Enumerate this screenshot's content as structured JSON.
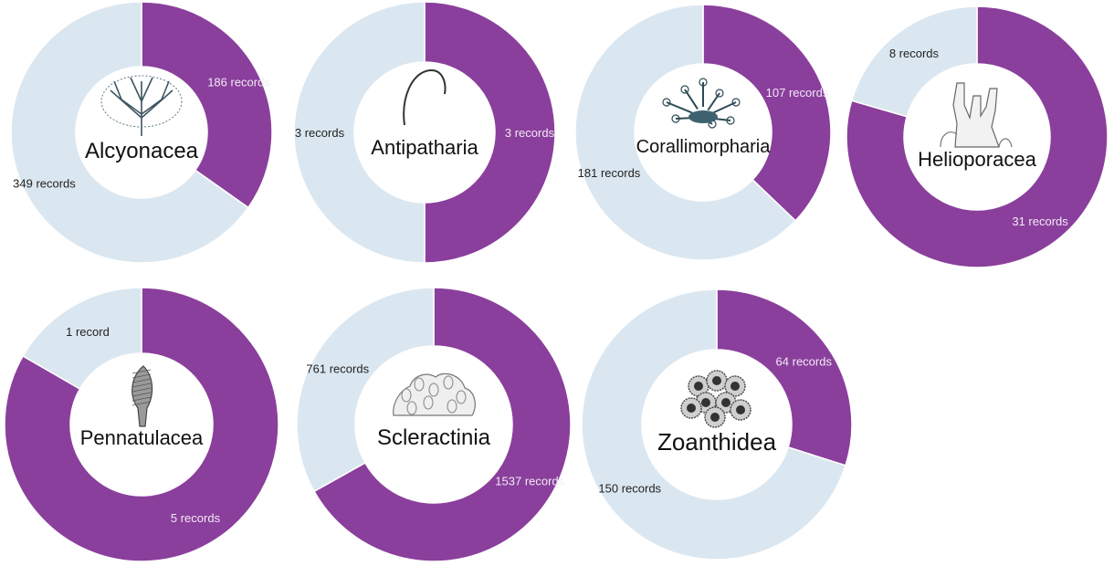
{
  "colors": {
    "recorded": "#8a3f9c",
    "other": "#dbe7f0",
    "label_on_recorded": "#f2eaf5",
    "label_on_other": "#222222"
  },
  "chart_data": [
    {
      "type": "pie",
      "title": "Alcyonacea",
      "icon": "sea-fan-icon",
      "slices": [
        {
          "label": "186 records",
          "value": 186,
          "color_key": "recorded"
        },
        {
          "label": "349 records",
          "value": 349,
          "color_key": "other"
        }
      ]
    },
    {
      "type": "pie",
      "title": "Antipatharia",
      "icon": "black-coral-icon",
      "slices": [
        {
          "label": "3 records",
          "value": 3,
          "color_key": "recorded"
        },
        {
          "label": "3 records",
          "value": 3,
          "color_key": "other"
        }
      ]
    },
    {
      "type": "pie",
      "title": "Corallimorpharia",
      "icon": "corallimorph-icon",
      "slices": [
        {
          "label": "107 records",
          "value": 107,
          "color_key": "recorded"
        },
        {
          "label": "181 records",
          "value": 181,
          "color_key": "other"
        }
      ]
    },
    {
      "type": "pie",
      "title": "Helioporacea",
      "icon": "blue-coral-icon",
      "slices": [
        {
          "label": "31 records",
          "value": 31,
          "color_key": "recorded"
        },
        {
          "label": "8 records",
          "value": 8,
          "color_key": "other"
        }
      ]
    },
    {
      "type": "pie",
      "title": "Pennatulacea",
      "icon": "sea-pen-icon",
      "slices": [
        {
          "label": "5 records",
          "value": 5,
          "color_key": "recorded"
        },
        {
          "label": "1 record",
          "value": 1,
          "color_key": "other"
        }
      ]
    },
    {
      "type": "pie",
      "title": "Scleractinia",
      "icon": "stony-coral-icon",
      "slices": [
        {
          "label": "1537 records",
          "value": 1537,
          "color_key": "recorded"
        },
        {
          "label": "761 records",
          "value": 761,
          "color_key": "other"
        }
      ]
    },
    {
      "type": "pie",
      "title": "Zoanthidea",
      "icon": "zoanthid-icon",
      "slices": [
        {
          "label": "64 records",
          "value": 64,
          "color_key": "recorded"
        },
        {
          "label": "150 records",
          "value": 150,
          "color_key": "other"
        }
      ]
    }
  ]
}
